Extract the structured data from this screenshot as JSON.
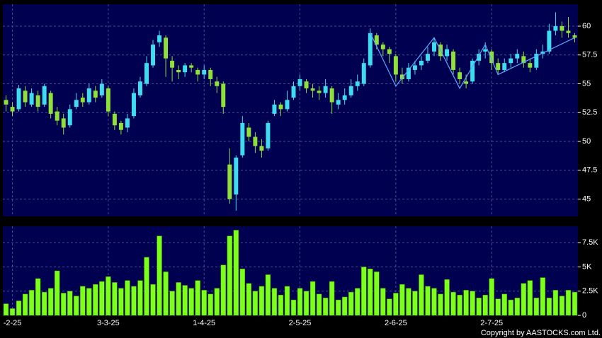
{
  "chart_data": [
    {
      "type": "candlestick",
      "open": [
        53.6,
        53.0,
        52.8,
        54.4,
        53.2,
        54.0,
        53.2,
        54.2,
        52.6,
        52.0,
        51.4,
        53.0,
        53.8,
        53.4,
        54.4,
        54.0,
        54.6,
        52.4,
        51.6,
        51.2,
        52.2,
        54.0,
        55.0,
        56.6,
        58.6,
        59.0,
        57.0,
        56.2,
        56.0,
        56.6,
        56.2,
        55.8,
        56.2,
        55.2,
        55.0,
        48.0,
        45.4,
        48.8,
        51.2,
        50.4,
        49.6,
        49.4,
        52.4,
        53.2,
        52.8,
        53.8,
        54.8,
        55.2,
        54.6,
        54.4,
        54.2,
        54.6,
        53.2,
        53.6,
        54.0,
        54.8,
        55.0,
        56.6,
        59.2,
        58.4,
        58.0,
        57.4,
        55.8,
        55.4,
        56.2,
        56.6,
        57.0,
        57.8,
        58.4,
        57.4,
        57.8,
        56.0,
        55.2,
        55.2,
        57.0,
        57.8,
        57.8,
        56.8,
        56.2,
        56.8,
        57.2,
        57.4,
        56.8,
        56.4,
        57.6,
        57.8,
        59.6,
        60.0,
        59.6,
        59.2
      ],
      "high": [
        54.0,
        53.4,
        54.9,
        54.8,
        54.6,
        54.4,
        55.0,
        54.4,
        53.0,
        52.4,
        53.2,
        54.2,
        54.2,
        55.0,
        54.8,
        55.4,
        54.8,
        52.6,
        51.8,
        52.4,
        54.6,
        55.6,
        57.4,
        58.8,
        59.6,
        59.2,
        57.4,
        56.6,
        56.8,
        56.8,
        56.4,
        56.6,
        56.4,
        55.6,
        55.2,
        49.4,
        48.8,
        52.2,
        51.6,
        50.8,
        50.2,
        51.8,
        53.6,
        53.4,
        54.4,
        55.2,
        55.8,
        55.4,
        55.0,
        54.8,
        55.4,
        54.8,
        54.2,
        54.6,
        55.4,
        55.8,
        57.2,
        59.8,
        59.4,
        58.6,
        58.2,
        57.6,
        56.4,
        56.8,
        57.0,
        57.4,
        58.2,
        59.0,
        58.6,
        58.4,
        58.0,
        56.4,
        55.8,
        57.2,
        58.0,
        58.6,
        58.0,
        57.2,
        57.2,
        57.6,
        58.0,
        57.8,
        57.2,
        58.0,
        58.4,
        60.2,
        61.2,
        60.4,
        60.8,
        59.4
      ],
      "low": [
        52.6,
        52.2,
        52.6,
        53.0,
        53.0,
        52.6,
        53.0,
        52.0,
        51.4,
        50.6,
        51.2,
        52.8,
        53.0,
        53.2,
        53.4,
        53.8,
        52.2,
        51.0,
        50.6,
        50.8,
        52.0,
        53.8,
        54.8,
        56.4,
        58.2,
        55.6,
        55.2,
        55.4,
        55.6,
        56.0,
        55.2,
        55.4,
        54.8,
        54.2,
        52.4,
        44.6,
        44.0,
        48.6,
        50.0,
        49.0,
        48.6,
        49.2,
        52.2,
        52.2,
        52.6,
        53.6,
        54.4,
        54.2,
        53.8,
        53.6,
        53.8,
        52.4,
        52.8,
        53.2,
        53.8,
        54.4,
        54.8,
        56.4,
        58.0,
        57.4,
        56.8,
        55.2,
        55.0,
        55.2,
        55.8,
        56.2,
        56.8,
        57.4,
        57.0,
        57.0,
        55.8,
        55.0,
        54.6,
        55.0,
        56.6,
        57.2,
        56.2,
        55.8,
        56.0,
        56.4,
        56.8,
        56.4,
        56.0,
        56.2,
        57.2,
        57.6,
        59.2,
        59.0,
        59.0,
        58.6
      ],
      "close": [
        53.2,
        52.6,
        54.6,
        53.4,
        54.2,
        53.0,
        54.8,
        52.4,
        51.8,
        51.2,
        52.8,
        53.6,
        53.4,
        54.6,
        53.8,
        55.0,
        52.6,
        51.4,
        51.0,
        52.0,
        54.2,
        55.2,
        56.8,
        58.4,
        59.2,
        57.2,
        56.4,
        56.0,
        56.6,
        56.4,
        55.8,
        56.2,
        55.4,
        54.8,
        53.0,
        45.0,
        48.6,
        51.6,
        50.4,
        49.6,
        49.2,
        51.6,
        53.2,
        52.8,
        53.6,
        54.8,
        55.4,
        54.6,
        54.4,
        54.2,
        54.8,
        53.4,
        53.6,
        54.0,
        54.8,
        55.2,
        56.8,
        59.4,
        58.4,
        58.0,
        57.6,
        55.8,
        55.4,
        56.4,
        56.6,
        57.0,
        57.6,
        58.6,
        57.4,
        58.0,
        56.2,
        55.4,
        55.0,
        57.0,
        57.6,
        58.0,
        56.8,
        56.2,
        56.8,
        57.2,
        57.6,
        56.8,
        56.4,
        57.6,
        57.8,
        59.6,
        60.0,
        59.6,
        59.4,
        59.0
      ],
      "up_color": "#3fdcf0",
      "down_color": "#8fe03a",
      "overlay": {
        "x": [
          57,
          61,
          67,
          71,
          75,
          77,
          89
        ],
        "values": [
          59.4,
          54.8,
          59.0,
          54.6,
          58.4,
          55.8,
          59.0
        ],
        "color": "#5aa8ff"
      },
      "ylim": [
        43.5,
        61.9
      ],
      "yticks": [
        45,
        47.5,
        50,
        52.5,
        55,
        57.5,
        60
      ],
      "grid": true
    },
    {
      "type": "bar",
      "categories": [
        null,
        "-2-25",
        null,
        null,
        null,
        null,
        null,
        null,
        null,
        null,
        null,
        null,
        null,
        null,
        null,
        null,
        "3-3-25",
        null,
        null,
        null,
        null,
        null,
        null,
        null,
        null,
        null,
        null,
        null,
        null,
        null,
        null,
        "1-4-25",
        null,
        null,
        null,
        null,
        null,
        null,
        null,
        null,
        null,
        null,
        null,
        null,
        null,
        null,
        "2-5-25",
        null,
        null,
        null,
        null,
        null,
        null,
        null,
        null,
        null,
        null,
        null,
        null,
        null,
        null,
        "2-6-25",
        null,
        null,
        null,
        null,
        null,
        null,
        null,
        null,
        null,
        null,
        null,
        null,
        null,
        null,
        "2-7-25",
        null,
        null,
        null,
        null,
        null,
        null,
        null,
        null,
        null,
        null,
        null,
        null,
        null
      ],
      "values": [
        1200,
        700,
        1500,
        2200,
        2600,
        3800,
        2400,
        2800,
        4600,
        2300,
        2500,
        2000,
        3000,
        2800,
        3200,
        3500,
        4000,
        3400,
        2800,
        3600,
        3000,
        3600,
        6000,
        3200,
        8200,
        4500,
        2500,
        3400,
        3100,
        2800,
        3600,
        2600,
        2200,
        2800,
        5200,
        8200,
        8800,
        4800,
        3300,
        2500,
        3000,
        4200,
        2800,
        2100,
        3000,
        1600,
        2800,
        2500,
        3500,
        2200,
        1800,
        3500,
        1600,
        1900,
        2400,
        2800,
        5000,
        4800,
        4500,
        2800,
        1700,
        2300,
        3200,
        2800,
        2500,
        4200,
        3000,
        2800,
        2200,
        3700,
        2400,
        2100,
        2600,
        2500,
        1800,
        2100,
        3800,
        1700,
        2200,
        1600,
        1800,
        3300,
        3600,
        1800,
        3900,
        1800,
        2600,
        2000,
        2600,
        2400
      ],
      "color": "#7cff1a",
      "ylim": [
        0,
        9200
      ],
      "yticks": [
        0,
        {
          "value": 2500,
          "label": "2.5K"
        },
        {
          "value": 5000,
          "label": "5K"
        },
        {
          "value": 7500,
          "label": "7.5K"
        }
      ],
      "grid": true
    }
  ],
  "copyright": "Copyright by AASTOCKS.com Ltd."
}
